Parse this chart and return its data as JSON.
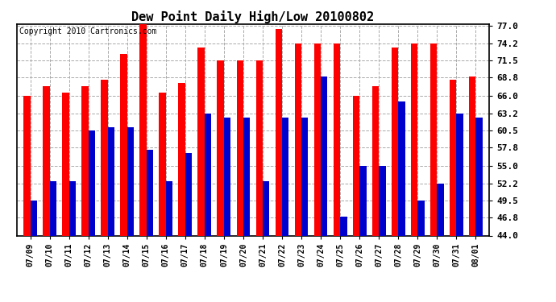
{
  "title": "Dew Point Daily High/Low 20100802",
  "copyright": "Copyright 2010 Cartronics.com",
  "dates": [
    "07/09",
    "07/10",
    "07/11",
    "07/12",
    "07/13",
    "07/14",
    "07/15",
    "07/16",
    "07/17",
    "07/18",
    "07/19",
    "07/20",
    "07/21",
    "07/22",
    "07/23",
    "07/24",
    "07/25",
    "07/26",
    "07/27",
    "07/28",
    "07/29",
    "07/30",
    "07/31",
    "08/01"
  ],
  "highs": [
    66.0,
    67.5,
    66.5,
    67.5,
    68.5,
    72.5,
    77.5,
    66.5,
    68.0,
    73.5,
    71.5,
    71.5,
    71.5,
    76.5,
    74.2,
    74.2,
    74.2,
    66.0,
    67.5,
    73.5,
    74.2,
    74.2,
    68.5,
    69.0
  ],
  "lows": [
    49.5,
    52.5,
    52.5,
    60.5,
    61.0,
    61.0,
    57.5,
    52.5,
    57.0,
    63.2,
    62.5,
    62.5,
    52.5,
    62.5,
    62.5,
    69.0,
    47.0,
    55.0,
    55.0,
    65.0,
    49.5,
    52.2,
    63.2,
    62.5
  ],
  "high_color": "#ff0000",
  "low_color": "#0000cc",
  "bg_color": "#ffffff",
  "grid_color": "#aaaaaa",
  "ylim_min": 44.0,
  "ylim_max": 77.0,
  "yticks": [
    44.0,
    46.8,
    49.5,
    52.2,
    55.0,
    57.8,
    60.5,
    63.2,
    66.0,
    68.8,
    71.5,
    74.2,
    77.0
  ]
}
